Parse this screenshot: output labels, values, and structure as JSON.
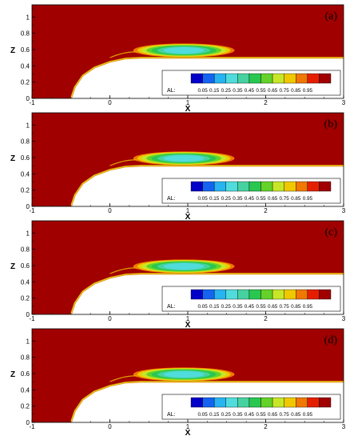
{
  "chart_data": [
    {
      "type": "heatmap",
      "panel_label": "(a)",
      "xlabel": "X",
      "ylabel": "Z",
      "xlim": [
        -1,
        3
      ],
      "ylim": [
        0,
        1.15
      ],
      "xticks": [
        "-1",
        "0",
        "1",
        "2",
        "3"
      ],
      "xtick_values": [
        -1,
        0,
        1,
        2,
        3
      ],
      "yticks": [
        "0",
        "0.2",
        "0.4",
        "0.6",
        "0.8",
        "1"
      ],
      "ytick_values": [
        0,
        0.2,
        0.4,
        0.6,
        0.8,
        1
      ],
      "legend_title": "AL:",
      "legend_values": [
        "0.05",
        "0.15",
        "0.25",
        "0.35",
        "0.45",
        "0.55",
        "0.65",
        "0.75",
        "0.85",
        "0.95"
      ],
      "legend_placement": "lower-right",
      "colors": [
        "#0000c8",
        "#1464f0",
        "#28b4f0",
        "#50dcdc",
        "#46d2a0",
        "#28c850",
        "#64d228",
        "#c8e628",
        "#f0c800",
        "#f07800",
        "#e61e00",
        "#a00000"
      ],
      "body_contour": [
        [
          -0.5,
          0
        ],
        [
          -0.45,
          0.14
        ],
        [
          -0.35,
          0.28
        ],
        [
          -0.2,
          0.38
        ],
        [
          0,
          0.45
        ],
        [
          0.2,
          0.49
        ],
        [
          0.4,
          0.5
        ],
        [
          3,
          0.5
        ]
      ],
      "cavity_contour": [
        [
          0.3,
          0.55
        ],
        [
          0.4,
          0.62
        ],
        [
          0.6,
          0.66
        ],
        [
          1,
          0.67
        ],
        [
          1.4,
          0.65
        ],
        [
          1.6,
          0.6
        ],
        [
          1.55,
          0.54
        ],
        [
          1.2,
          0.52
        ],
        [
          0.6,
          0.52
        ],
        [
          0.3,
          0.55
        ]
      ]
    },
    {
      "type": "heatmap",
      "panel_label": "(b)",
      "xlabel": "X",
      "ylabel": "Z",
      "xlim": [
        -1,
        3
      ],
      "ylim": [
        0,
        1.15
      ],
      "xticks": [
        "-1",
        "0",
        "1",
        "2",
        "3"
      ],
      "xtick_values": [
        -1,
        0,
        1,
        2,
        3
      ],
      "yticks": [
        "0",
        "0.2",
        "0.4",
        "0.6",
        "0.8",
        "1"
      ],
      "ytick_values": [
        0,
        0.2,
        0.4,
        0.6,
        0.8,
        1
      ],
      "legend_title": "AL:",
      "legend_values": [
        "0.05",
        "0.15",
        "0.25",
        "0.35",
        "0.45",
        "0.55",
        "0.65",
        "0.75",
        "0.85",
        "0.95"
      ],
      "legend_placement": "lower-right",
      "colors": [
        "#0000c8",
        "#1464f0",
        "#28b4f0",
        "#50dcdc",
        "#46d2a0",
        "#28c850",
        "#64d228",
        "#c8e628",
        "#f0c800",
        "#f07800",
        "#e61e00",
        "#a00000"
      ],
      "body_contour": [
        [
          -0.5,
          0
        ],
        [
          -0.45,
          0.14
        ],
        [
          -0.35,
          0.28
        ],
        [
          -0.2,
          0.38
        ],
        [
          0,
          0.45
        ],
        [
          0.2,
          0.49
        ],
        [
          0.4,
          0.5
        ],
        [
          3,
          0.5
        ]
      ],
      "cavity_contour": [
        [
          0.3,
          0.55
        ],
        [
          0.4,
          0.62
        ],
        [
          0.6,
          0.66
        ],
        [
          1,
          0.67
        ],
        [
          1.4,
          0.65
        ],
        [
          1.6,
          0.6
        ],
        [
          1.55,
          0.54
        ],
        [
          1.2,
          0.52
        ],
        [
          0.6,
          0.52
        ],
        [
          0.3,
          0.55
        ]
      ]
    },
    {
      "type": "heatmap",
      "panel_label": "(c)",
      "xlabel": "X",
      "ylabel": "Z",
      "xlim": [
        -1,
        3
      ],
      "ylim": [
        0,
        1.15
      ],
      "xticks": [
        "-1",
        "0",
        "1",
        "2",
        "3"
      ],
      "xtick_values": [
        -1,
        0,
        1,
        2,
        3
      ],
      "yticks": [
        "0",
        "0.2",
        "0.4",
        "0.6",
        "0.8",
        "1"
      ],
      "ytick_values": [
        0,
        0.2,
        0.4,
        0.6,
        0.8,
        1
      ],
      "legend_title": "AL:",
      "legend_values": [
        "0.05",
        "0.15",
        "0.25",
        "0.35",
        "0.45",
        "0.55",
        "0.65",
        "0.75",
        "0.85",
        "0.95"
      ],
      "legend_placement": "lower-right",
      "colors": [
        "#0000c8",
        "#1464f0",
        "#28b4f0",
        "#50dcdc",
        "#46d2a0",
        "#28c850",
        "#64d228",
        "#c8e628",
        "#f0c800",
        "#f07800",
        "#e61e00",
        "#a00000"
      ],
      "body_contour": [
        [
          -0.5,
          0
        ],
        [
          -0.45,
          0.14
        ],
        [
          -0.35,
          0.28
        ],
        [
          -0.2,
          0.38
        ],
        [
          0,
          0.45
        ],
        [
          0.2,
          0.49
        ],
        [
          0.4,
          0.5
        ],
        [
          3,
          0.5
        ]
      ],
      "cavity_contour": [
        [
          0.3,
          0.55
        ],
        [
          0.4,
          0.62
        ],
        [
          0.6,
          0.66
        ],
        [
          1,
          0.67
        ],
        [
          1.4,
          0.65
        ],
        [
          1.6,
          0.6
        ],
        [
          1.55,
          0.54
        ],
        [
          1.2,
          0.52
        ],
        [
          0.6,
          0.52
        ],
        [
          0.3,
          0.55
        ]
      ]
    },
    {
      "type": "heatmap",
      "panel_label": "(d)",
      "xlabel": "X",
      "ylabel": "Z",
      "xlim": [
        -1,
        3
      ],
      "ylim": [
        0,
        1.15
      ],
      "xticks": [
        "-1",
        "0",
        "1",
        "2",
        "3"
      ],
      "xtick_values": [
        -1,
        0,
        1,
        2,
        3
      ],
      "yticks": [
        "0",
        "0.2",
        "0.4",
        "0.6",
        "0.8",
        "1"
      ],
      "ytick_values": [
        0,
        0.2,
        0.4,
        0.6,
        0.8,
        1
      ],
      "legend_title": "AL:",
      "legend_values": [
        "0.05",
        "0.15",
        "0.25",
        "0.35",
        "0.45",
        "0.55",
        "0.65",
        "0.75",
        "0.85",
        "0.95"
      ],
      "legend_placement": "lower-right",
      "colors": [
        "#0000c8",
        "#1464f0",
        "#28b4f0",
        "#50dcdc",
        "#46d2a0",
        "#28c850",
        "#64d228",
        "#c8e628",
        "#f0c800",
        "#f07800",
        "#e61e00",
        "#a00000"
      ],
      "body_contour": [
        [
          -0.5,
          0
        ],
        [
          -0.45,
          0.14
        ],
        [
          -0.35,
          0.28
        ],
        [
          -0.2,
          0.38
        ],
        [
          0,
          0.45
        ],
        [
          0.2,
          0.49
        ],
        [
          0.4,
          0.5
        ],
        [
          3,
          0.5
        ]
      ],
      "cavity_contour": [
        [
          0.3,
          0.55
        ],
        [
          0.4,
          0.62
        ],
        [
          0.6,
          0.66
        ],
        [
          1,
          0.67
        ],
        [
          1.4,
          0.65
        ],
        [
          1.6,
          0.6
        ],
        [
          1.55,
          0.54
        ],
        [
          1.2,
          0.52
        ],
        [
          0.6,
          0.52
        ],
        [
          0.3,
          0.55
        ]
      ]
    }
  ]
}
